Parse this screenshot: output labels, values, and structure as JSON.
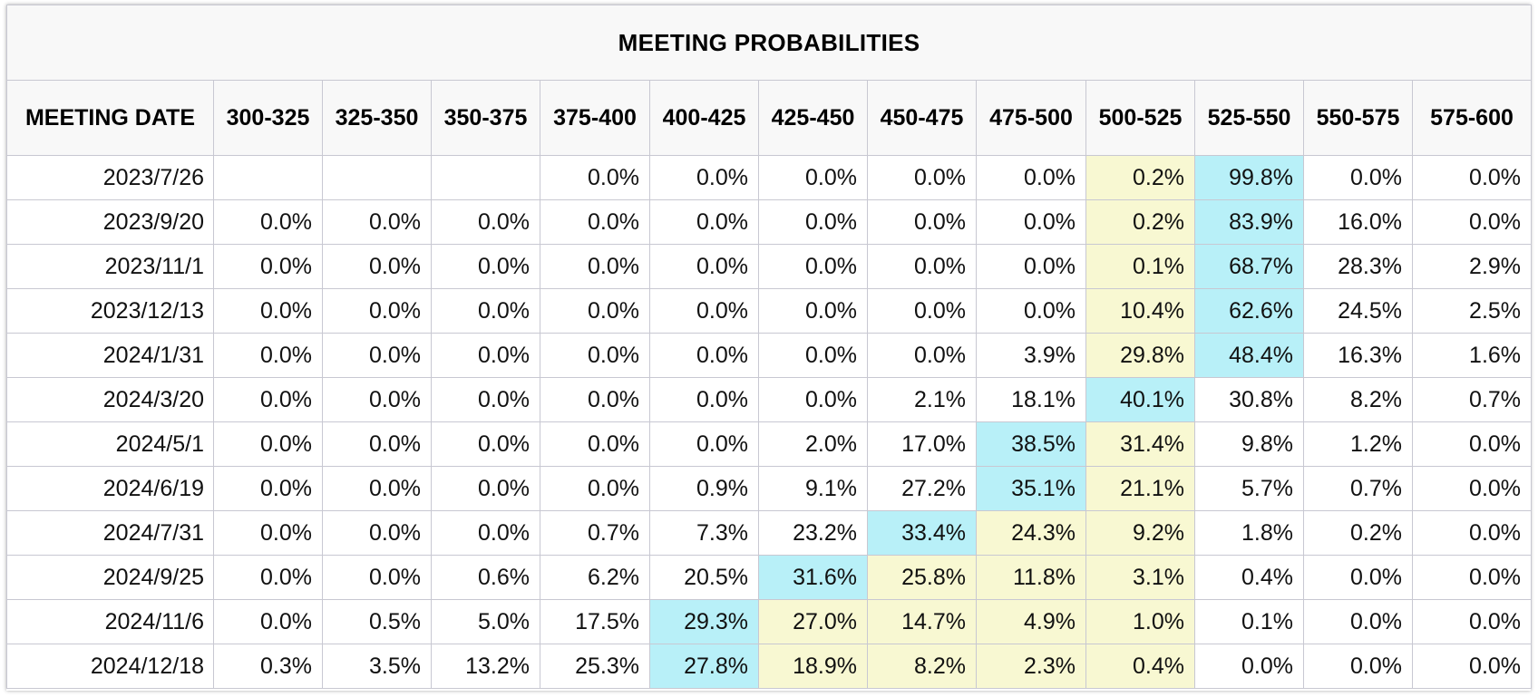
{
  "table": {
    "title": "MEETING PROBABILITIES",
    "date_header": "MEETING DATE",
    "columns": [
      "300-325",
      "325-350",
      "350-375",
      "375-400",
      "400-425",
      "425-450",
      "450-475",
      "475-500",
      "500-525",
      "525-550",
      "550-575",
      "575-600"
    ],
    "highlight_colors": {
      "most_likely": "#b8f0f8",
      "other_likely": "#f8f8d2"
    },
    "rows": [
      {
        "date": "2023/7/26",
        "values": [
          "",
          "",
          "",
          "0.0%",
          "0.0%",
          "0.0%",
          "0.0%",
          "0.0%",
          "0.2%",
          "99.8%",
          "0.0%",
          "0.0%"
        ],
        "cur": [
          9
        ],
        "near": [
          8
        ]
      },
      {
        "date": "2023/9/20",
        "values": [
          "0.0%",
          "0.0%",
          "0.0%",
          "0.0%",
          "0.0%",
          "0.0%",
          "0.0%",
          "0.0%",
          "0.2%",
          "83.9%",
          "16.0%",
          "0.0%"
        ],
        "cur": [
          9
        ],
        "near": [
          8
        ]
      },
      {
        "date": "2023/11/1",
        "values": [
          "0.0%",
          "0.0%",
          "0.0%",
          "0.0%",
          "0.0%",
          "0.0%",
          "0.0%",
          "0.0%",
          "0.1%",
          "68.7%",
          "28.3%",
          "2.9%"
        ],
        "cur": [
          9
        ],
        "near": [
          8
        ]
      },
      {
        "date": "2023/12/13",
        "values": [
          "0.0%",
          "0.0%",
          "0.0%",
          "0.0%",
          "0.0%",
          "0.0%",
          "0.0%",
          "0.0%",
          "10.4%",
          "62.6%",
          "24.5%",
          "2.5%"
        ],
        "cur": [
          9
        ],
        "near": [
          8
        ]
      },
      {
        "date": "2024/1/31",
        "values": [
          "0.0%",
          "0.0%",
          "0.0%",
          "0.0%",
          "0.0%",
          "0.0%",
          "0.0%",
          "3.9%",
          "29.8%",
          "48.4%",
          "16.3%",
          "1.6%"
        ],
        "cur": [
          9
        ],
        "near": [
          8
        ]
      },
      {
        "date": "2024/3/20",
        "values": [
          "0.0%",
          "0.0%",
          "0.0%",
          "0.0%",
          "0.0%",
          "0.0%",
          "2.1%",
          "18.1%",
          "40.1%",
          "30.8%",
          "8.2%",
          "0.7%"
        ],
        "cur": [
          8
        ],
        "near": []
      },
      {
        "date": "2024/5/1",
        "values": [
          "0.0%",
          "0.0%",
          "0.0%",
          "0.0%",
          "0.0%",
          "2.0%",
          "17.0%",
          "38.5%",
          "31.4%",
          "9.8%",
          "1.2%",
          "0.0%"
        ],
        "cur": [
          7
        ],
        "near": [
          8
        ]
      },
      {
        "date": "2024/6/19",
        "values": [
          "0.0%",
          "0.0%",
          "0.0%",
          "0.0%",
          "0.9%",
          "9.1%",
          "27.2%",
          "35.1%",
          "21.1%",
          "5.7%",
          "0.7%",
          "0.0%"
        ],
        "cur": [
          7
        ],
        "near": [
          8
        ]
      },
      {
        "date": "2024/7/31",
        "values": [
          "0.0%",
          "0.0%",
          "0.0%",
          "0.7%",
          "7.3%",
          "23.2%",
          "33.4%",
          "24.3%",
          "9.2%",
          "1.8%",
          "0.2%",
          "0.0%"
        ],
        "cur": [
          6
        ],
        "near": [
          7,
          8
        ]
      },
      {
        "date": "2024/9/25",
        "values": [
          "0.0%",
          "0.0%",
          "0.6%",
          "6.2%",
          "20.5%",
          "31.6%",
          "25.8%",
          "11.8%",
          "3.1%",
          "0.4%",
          "0.0%",
          "0.0%"
        ],
        "cur": [
          5
        ],
        "near": [
          6,
          7,
          8
        ]
      },
      {
        "date": "2024/11/6",
        "values": [
          "0.0%",
          "0.5%",
          "5.0%",
          "17.5%",
          "29.3%",
          "27.0%",
          "14.7%",
          "4.9%",
          "1.0%",
          "0.1%",
          "0.0%",
          "0.0%"
        ],
        "cur": [
          4
        ],
        "near": [
          5,
          6,
          7,
          8
        ]
      },
      {
        "date": "2024/12/18",
        "values": [
          "0.3%",
          "3.5%",
          "13.2%",
          "25.3%",
          "27.8%",
          "18.9%",
          "8.2%",
          "2.3%",
          "0.4%",
          "0.0%",
          "0.0%",
          "0.0%"
        ],
        "cur": [
          4
        ],
        "near": [
          5,
          6,
          7,
          8
        ]
      }
    ]
  }
}
